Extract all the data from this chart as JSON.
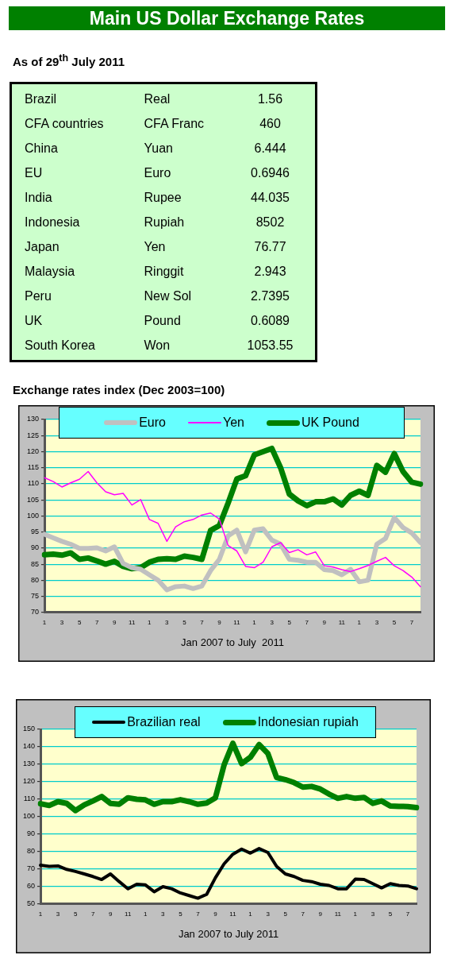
{
  "chart_data": [
    {
      "type": "other",
      "title": "Main US Dollar Exchange Rates",
      "subtitle": "As of 29$^{th}$ July 2011",
      "categories": [
        "Brazil",
        "CFA countries",
        "China",
        "EU",
        "India",
        "Indonesia",
        "Japan",
        "Malaysia",
        "Peru",
        "UK",
        "South Korea"
      ],
      "annotations": [
        "Real",
        "CFA Franc",
        "Yuan",
        "Euro",
        "Rupee",
        "Rupiah",
        "Yen",
        "Ringgit",
        "New Sol",
        "Pound",
        "Won"
      ],
      "data_labels": true,
      "values": [
        1.56,
        460,
        6.444,
        0.6946,
        44.035,
        8502,
        76.77,
        2.943,
        2.7395,
        0.6089,
        1053.55
      ]
    },
    {
      "type": "line",
      "title": "Exchange rates index (Dec 2003=100)",
      "xlabel": "Jan 2007 to July  2011",
      "categories": [
        "1",
        null,
        "3",
        null,
        "5",
        null,
        "7",
        null,
        "9",
        null,
        "11",
        null,
        "1",
        null,
        "3",
        null,
        "5",
        null,
        "7",
        null,
        "9",
        null,
        "11",
        null,
        "1",
        null,
        "3",
        null,
        "5",
        null,
        "7",
        null,
        "9",
        null,
        "11",
        null,
        "1",
        null,
        "3",
        null,
        "5",
        null,
        "7",
        null
      ],
      "ylim": [
        70,
        130
      ],
      "yticks": [
        70,
        75,
        80,
        85,
        90,
        95,
        100,
        105,
        110,
        115,
        120,
        125,
        130
      ],
      "grid": "y",
      "legend": "top",
      "marker": "none",
      "line_style": "solid",
      "series": [
        {
          "name": "Euro",
          "color": "#c0c0c0",
          "values": [
            94.3,
            93.2,
            92.1,
            91.2,
            89.9,
            89.9,
            90.1,
            89.1,
            90.4,
            85.2,
            83.9,
            83.4,
            81.7,
            80,
            77,
            78,
            78.2,
            77.4,
            78.2,
            83,
            86.5,
            93.8,
            95.6,
            88.8,
            95.6,
            96,
            92.5,
            91.2,
            86.5,
            86.2,
            85.6,
            85.6,
            83.3,
            83,
            81.7,
            83.4,
            79.5,
            80,
            91.2,
            93,
            99.5,
            96.4,
            94.7,
            91.7
          ]
        },
        {
          "name": "Yen",
          "color": "#ff00ff",
          "values": [
            111.9,
            110.7,
            109,
            110.3,
            111.4,
            113.8,
            110.3,
            107.5,
            106.6,
            107,
            103.4,
            105.1,
            98.9,
            97.7,
            92.1,
            96.6,
            98.2,
            98.9,
            100.3,
            100.9,
            99,
            90.8,
            89.1,
            84.3,
            83.9,
            85.6,
            90.4,
            91.7,
            88.6,
            89.5,
            87.9,
            88.8,
            84.5,
            84.1,
            83.3,
            82.7,
            83.6,
            84.6,
            85.9,
            87.1,
            84.5,
            83,
            81,
            78
          ]
        },
        {
          "name": "UK Pound",
          "color": "#008000",
          "values": [
            87.9,
            88.1,
            87.8,
            88.5,
            86.5,
            86.9,
            86,
            85,
            85.9,
            84.3,
            83.6,
            83.9,
            85.6,
            86.5,
            86.7,
            86.5,
            87.5,
            87.1,
            86.5,
            95.5,
            97,
            104,
            111.5,
            112.5,
            119,
            120,
            121,
            115,
            106.8,
            104.7,
            103.2,
            104.4,
            104.4,
            105.3,
            103.4,
            106.4,
            107.7,
            106.4,
            115.7,
            113.6,
            119.4,
            113.8,
            110.5,
            109.9
          ]
        }
      ]
    },
    {
      "type": "line",
      "xlabel": "Jan 2007 to July 2011",
      "categories": [
        "1",
        null,
        "3",
        null,
        "5",
        null,
        "7",
        null,
        "9",
        null,
        "11",
        null,
        "1",
        null,
        "3",
        null,
        "5",
        null,
        "7",
        null,
        "9",
        null,
        "11",
        null,
        "1",
        null,
        "3",
        null,
        "5",
        null,
        "7",
        null,
        "9",
        null,
        "11",
        null,
        "1",
        null,
        "3",
        null,
        "5",
        null,
        "7",
        null
      ],
      "ylim": [
        50,
        150
      ],
      "yticks": [
        50,
        60,
        70,
        80,
        90,
        100,
        110,
        120,
        130,
        140,
        150
      ],
      "grid": "y",
      "legend": "top",
      "marker": "none",
      "line_style": "solid",
      "series": [
        {
          "name": "Brazilian real",
          "color": "#000000",
          "values": [
            72.2,
            71.5,
            71.8,
            69.8,
            68.6,
            67.2,
            65.7,
            64,
            67.2,
            62.8,
            58.7,
            61.3,
            60.9,
            57,
            59.9,
            58.7,
            56.3,
            54.8,
            53.3,
            55.5,
            65,
            73,
            78.5,
            81.4,
            79.1,
            81.7,
            79.5,
            71.5,
            67.2,
            65.7,
            63.5,
            62.8,
            61.3,
            60.6,
            58.7,
            58.7,
            64.2,
            64,
            61.6,
            59.2,
            61.6,
            60.6,
            60.3,
            58.7
          ]
        },
        {
          "name": "Indonesian rupiah",
          "color": "#008000",
          "values": [
            107.4,
            106.4,
            108.6,
            107.6,
            103.5,
            106.7,
            109,
            111.5,
            107.6,
            107.1,
            110.8,
            110,
            109.6,
            107.1,
            108.6,
            108.6,
            109.7,
            108.6,
            107.1,
            107.8,
            110.8,
            129.7,
            142,
            130.4,
            134,
            141.3,
            136.2,
            122.4,
            121.2,
            119.5,
            116.9,
            117.3,
            115.8,
            112.9,
            110.5,
            111.5,
            110.5,
            111,
            107.6,
            109,
            106.1,
            105.9,
            105.8,
            105.2
          ]
        }
      ]
    }
  ]
}
